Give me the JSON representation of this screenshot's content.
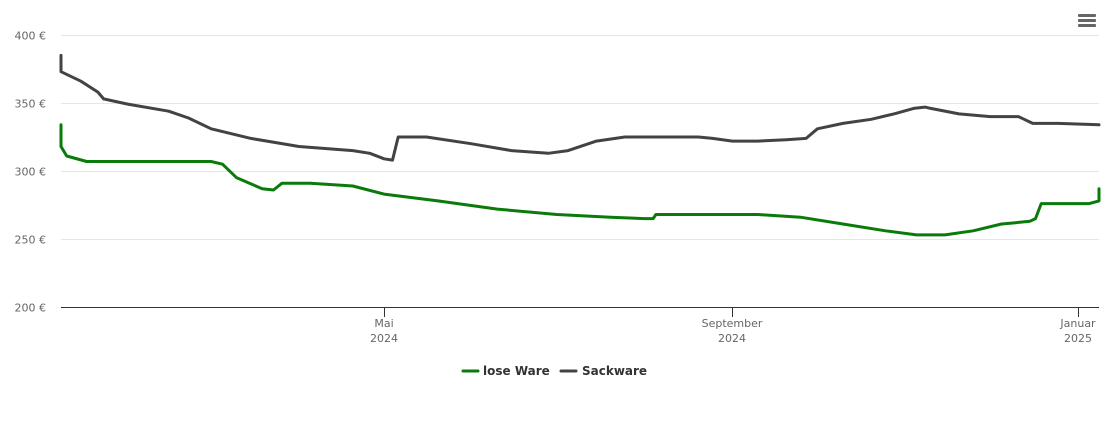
{
  "colors": {
    "lose_ware": "#0a7b0a",
    "sackware": "#434343",
    "grid": "#e6e6e6",
    "axis": "#333333",
    "tick_text": "#666666"
  },
  "menu": {
    "icon": "hamburger-menu-icon"
  },
  "chart_data": {
    "type": "line",
    "title": "",
    "xlabel": "",
    "ylabel": "",
    "ylim": [
      200,
      400
    ],
    "xlim": [
      "2024-01-01",
      "2025-01-05"
    ],
    "grid": true,
    "legend_position": "bottom-center",
    "y_ticks": [
      {
        "value": 200,
        "label": "200 €"
      },
      {
        "value": 250,
        "label": "250 €"
      },
      {
        "value": 300,
        "label": "300 €"
      },
      {
        "value": 350,
        "label": "350 €"
      },
      {
        "value": 400,
        "label": "400 €"
      }
    ],
    "x_ticks": [
      {
        "date": "2024-05-01",
        "month": "Mai",
        "year": "2024"
      },
      {
        "date": "2024-09-01",
        "month": "September",
        "year": "2024"
      },
      {
        "date": "2025-01-01",
        "month": "Januar",
        "year": "2025"
      }
    ],
    "series": [
      {
        "name": "lose Ware",
        "color": "#0a7b0a",
        "points": [
          [
            "2024-01-01",
            334
          ],
          [
            "2024-01-04",
            318
          ],
          [
            "2024-01-10",
            311
          ],
          [
            "2024-01-17",
            307
          ],
          [
            "2024-02-01",
            307
          ],
          [
            "2024-02-15",
            307
          ],
          [
            "2024-03-01",
            307
          ],
          [
            "2024-03-05",
            305
          ],
          [
            "2024-03-10",
            295
          ],
          [
            "2024-03-19",
            287
          ],
          [
            "2024-03-23",
            286
          ],
          [
            "2024-03-26",
            291
          ],
          [
            "2024-04-05",
            291
          ],
          [
            "2024-04-20",
            289
          ],
          [
            "2024-05-01",
            283
          ],
          [
            "2024-05-20",
            278
          ],
          [
            "2024-06-10",
            272
          ],
          [
            "2024-07-01",
            268
          ],
          [
            "2024-07-20",
            266
          ],
          [
            "2024-08-01",
            265
          ],
          [
            "2024-08-04",
            265
          ],
          [
            "2024-08-05",
            268
          ],
          [
            "2024-08-15",
            268
          ],
          [
            "2024-09-01",
            268
          ],
          [
            "2024-09-10",
            268
          ],
          [
            "2024-09-25",
            266
          ],
          [
            "2024-10-10",
            261
          ],
          [
            "2024-10-25",
            256
          ],
          [
            "2024-11-05",
            253
          ],
          [
            "2024-11-15",
            253
          ],
          [
            "2024-11-25",
            256
          ],
          [
            "2024-12-05",
            261
          ],
          [
            "2024-12-10",
            262
          ],
          [
            "2024-12-15",
            263
          ],
          [
            "2024-12-17",
            265
          ],
          [
            "2024-12-19",
            276
          ],
          [
            "2024-12-25",
            276
          ],
          [
            "2025-01-05",
            276
          ],
          [
            "2025-01-10",
            278
          ],
          [
            "2025-01-21",
            287
          ]
        ]
      },
      {
        "name": "Sackware",
        "color": "#434343",
        "points": [
          [
            "2024-01-01",
            385
          ],
          [
            "2024-01-03",
            380
          ],
          [
            "2024-01-07",
            373
          ],
          [
            "2024-01-15",
            366
          ],
          [
            "2024-01-21",
            358
          ],
          [
            "2024-01-23",
            353
          ],
          [
            "2024-02-01",
            349
          ],
          [
            "2024-02-15",
            344
          ],
          [
            "2024-02-22",
            339
          ],
          [
            "2024-03-01",
            331
          ],
          [
            "2024-03-15",
            324
          ],
          [
            "2024-04-01",
            318
          ],
          [
            "2024-04-20",
            315
          ],
          [
            "2024-04-26",
            313
          ],
          [
            "2024-05-01",
            309
          ],
          [
            "2024-05-04",
            308
          ],
          [
            "2024-05-06",
            325
          ],
          [
            "2024-05-16",
            325
          ],
          [
            "2024-06-01",
            320
          ],
          [
            "2024-06-15",
            315
          ],
          [
            "2024-06-28",
            313
          ],
          [
            "2024-07-05",
            315
          ],
          [
            "2024-07-15",
            322
          ],
          [
            "2024-07-25",
            325
          ],
          [
            "2024-08-10",
            325
          ],
          [
            "2024-08-20",
            325
          ],
          [
            "2024-08-25",
            324
          ],
          [
            "2024-09-01",
            322
          ],
          [
            "2024-09-10",
            322
          ],
          [
            "2024-09-20",
            323
          ],
          [
            "2024-09-27",
            324
          ],
          [
            "2024-10-01",
            331
          ],
          [
            "2024-10-10",
            335
          ],
          [
            "2024-10-20",
            338
          ],
          [
            "2024-10-28",
            342
          ],
          [
            "2024-11-04",
            346
          ],
          [
            "2024-11-08",
            347
          ],
          [
            "2024-11-10",
            346
          ],
          [
            "2024-11-20",
            342
          ],
          [
            "2024-12-01",
            340
          ],
          [
            "2024-12-11",
            340
          ],
          [
            "2024-12-13",
            338
          ],
          [
            "2024-12-16",
            335
          ],
          [
            "2024-12-25",
            335
          ],
          [
            "2025-01-21",
            334
          ]
        ]
      }
    ]
  }
}
